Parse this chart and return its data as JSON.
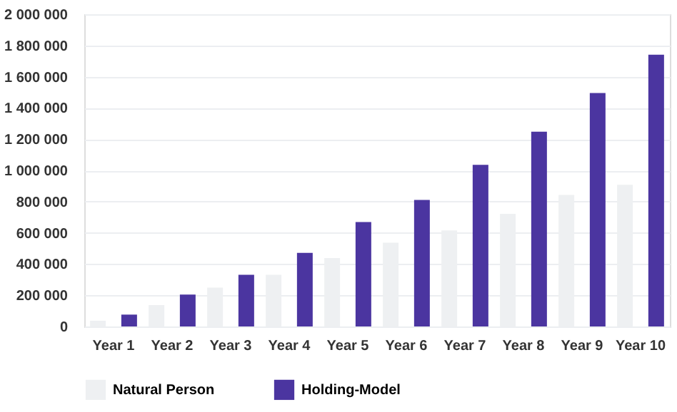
{
  "chart_data": {
    "type": "bar",
    "categories": [
      "Year 1",
      "Year 2",
      "Year 3",
      "Year 4",
      "Year 5",
      "Year 6",
      "Year 7",
      "Year 8",
      "Year 9",
      "Year 10"
    ],
    "series": [
      {
        "name": "Natural Person",
        "color": "#eef0f2",
        "values": [
          37000,
          137000,
          249000,
          331000,
          438000,
          536000,
          615000,
          721000,
          843000,
          907000
        ]
      },
      {
        "name": "Holding-Model",
        "color": "#4b35a0",
        "values": [
          76000,
          204000,
          331000,
          472000,
          669000,
          810000,
          1035000,
          1248000,
          1495000,
          1741000
        ]
      }
    ],
    "ylim": [
      0,
      2000000
    ],
    "yticks": [
      0,
      {
        "value": 200000,
        "label": "200 000"
      },
      {
        "value": 400000,
        "label": "400 000"
      },
      {
        "value": 600000,
        "label": "600 000"
      },
      {
        "value": 800000,
        "label": "800 000"
      },
      {
        "value": 1000000,
        "label": "1 000 000"
      },
      {
        "value": 1200000,
        "label": "1 200 000"
      },
      {
        "value": 1400000,
        "label": "1 400 000"
      },
      {
        "value": 1600000,
        "label": "1 600 000"
      },
      {
        "value": 1800000,
        "label": "1 800 000"
      },
      {
        "value": 2000000,
        "label": "2 000 000"
      }
    ],
    "grid": "y",
    "legend": "bottom"
  }
}
